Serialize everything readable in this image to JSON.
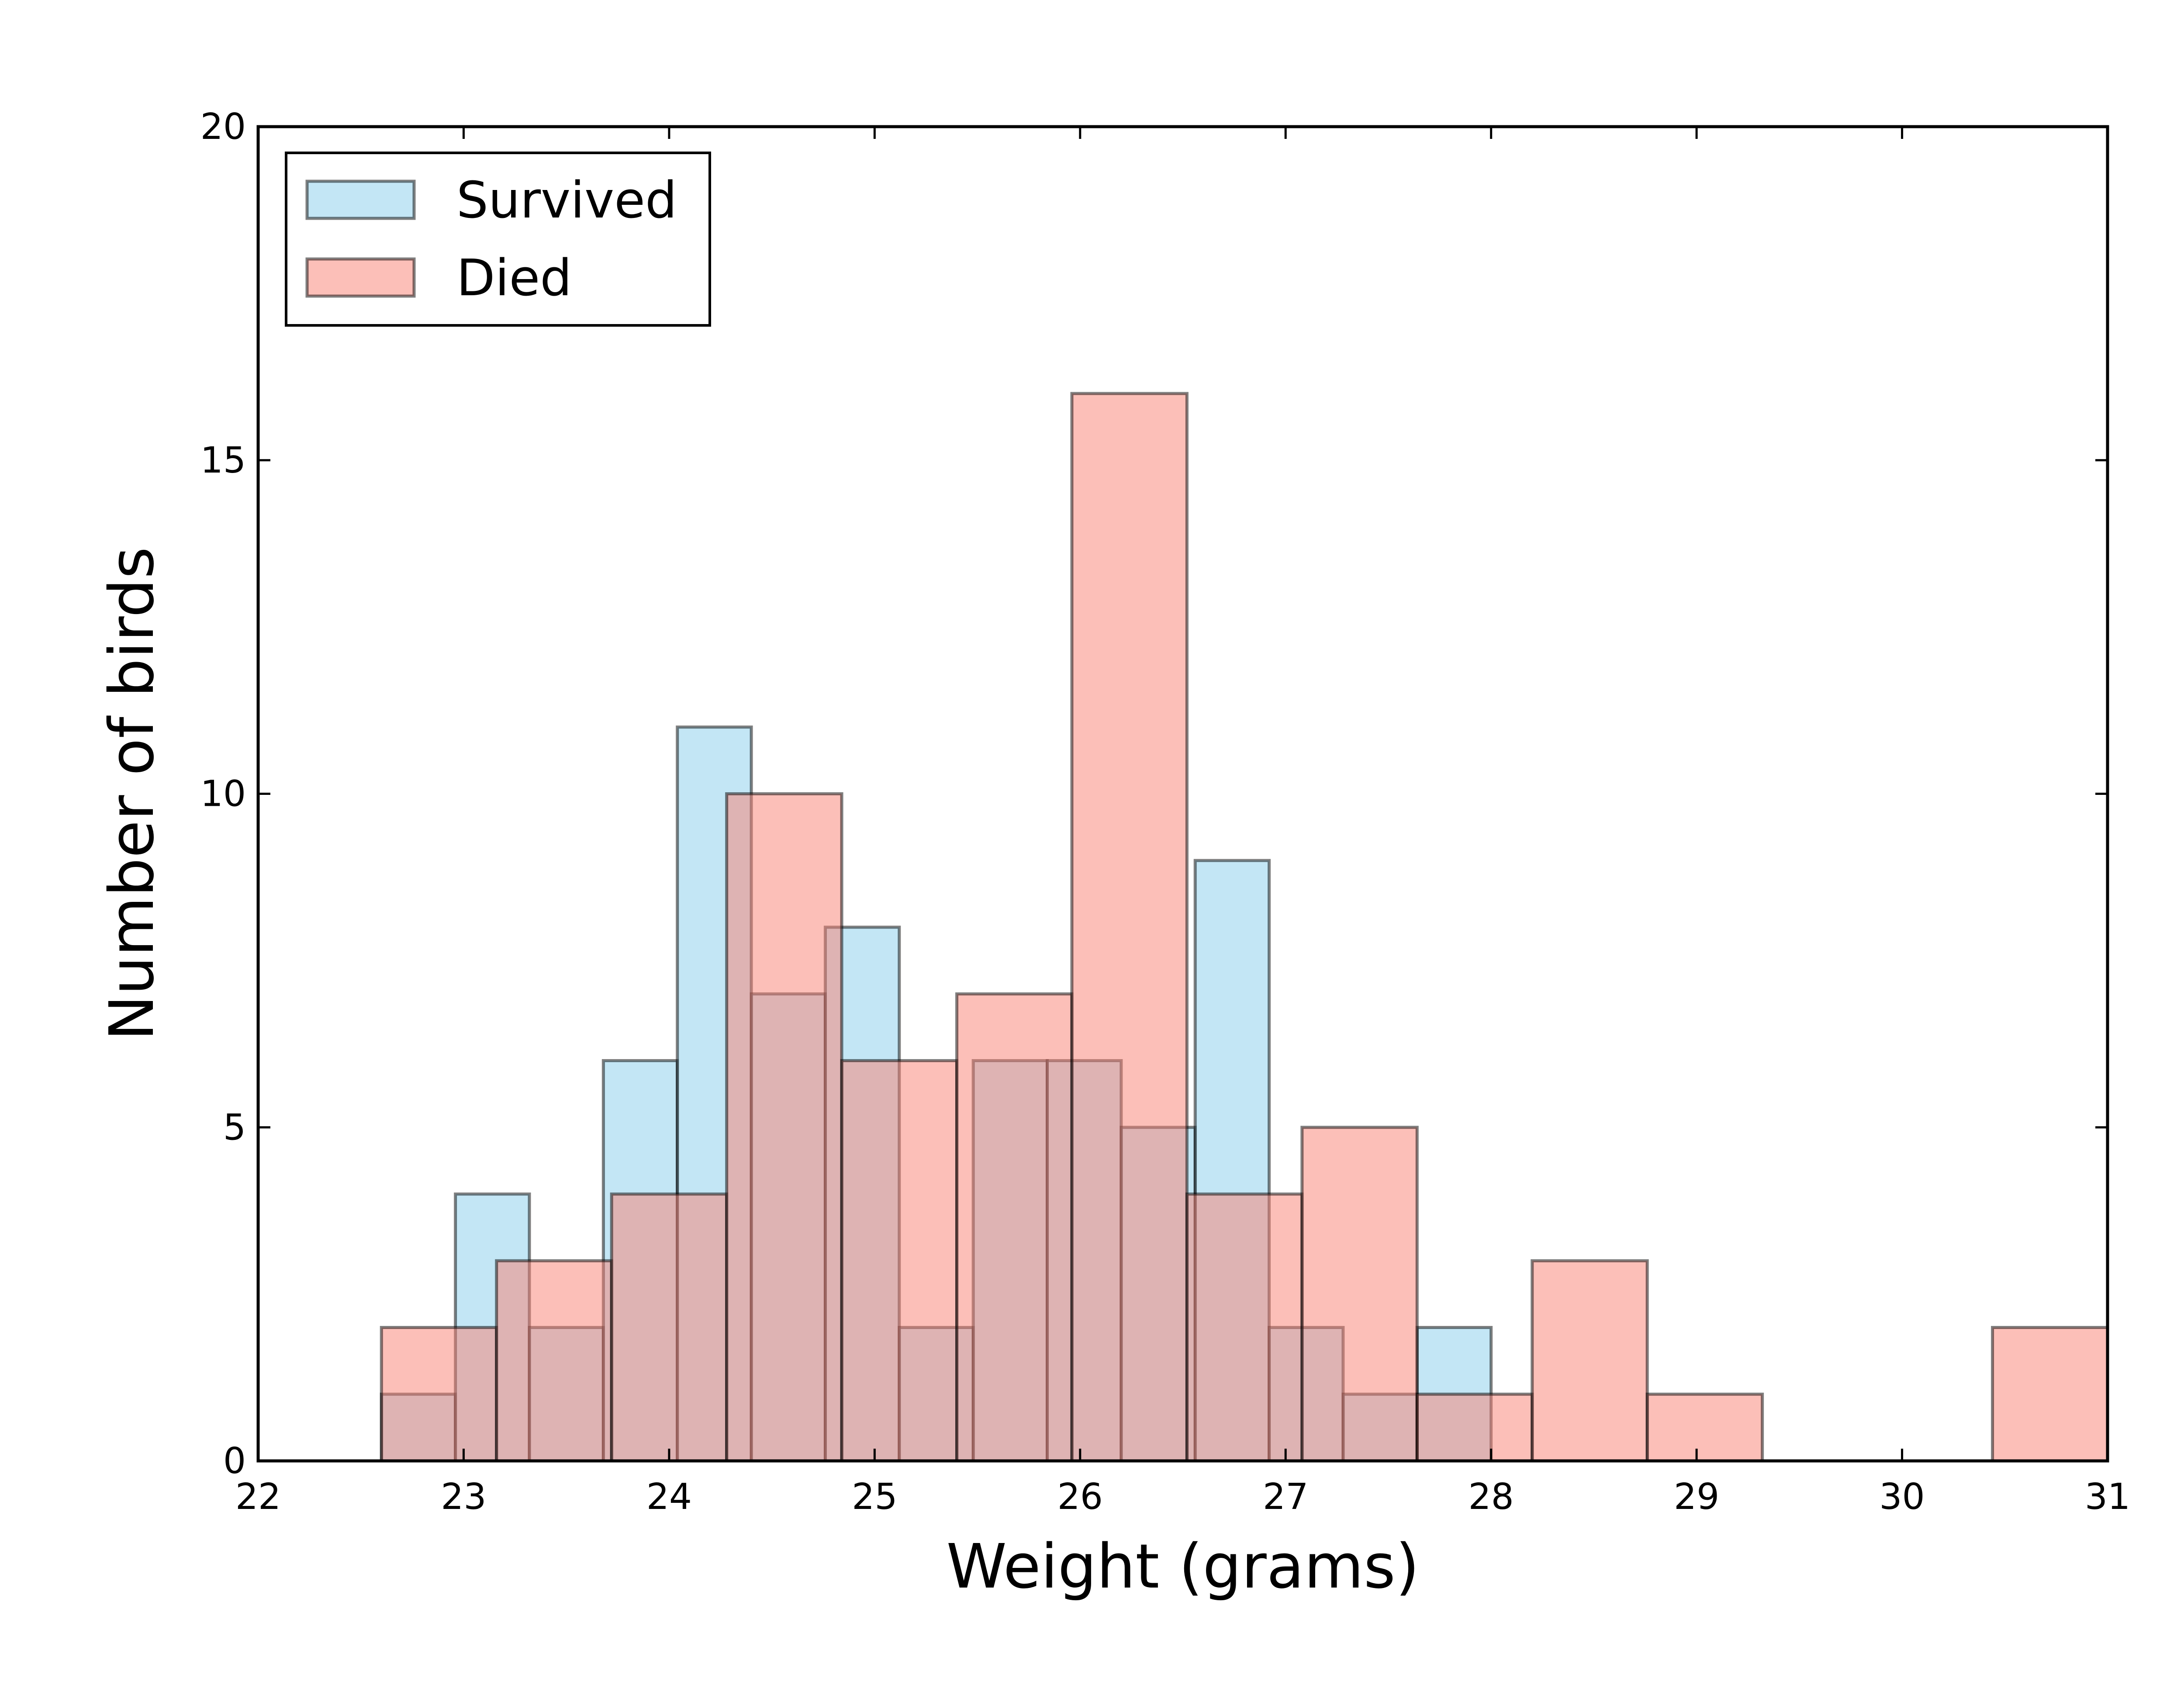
{
  "chart_data": {
    "type": "bar",
    "xlabel": "Weight (grams)",
    "ylabel": "Number of birds",
    "xlim": [
      22,
      31
    ],
    "ylim": [
      0,
      20
    ],
    "x_ticks": [
      "22",
      "23",
      "24",
      "25",
      "26",
      "27",
      "28",
      "29",
      "30",
      "31"
    ],
    "y_ticks": [
      "0",
      "5",
      "10",
      "15",
      "20"
    ],
    "legend_position": "upper-left",
    "grid": false,
    "series": [
      {
        "name": "Survived",
        "color": "#87ceeb",
        "bins": [
          {
            "x0": 22.6,
            "x1": 22.96,
            "count": 1
          },
          {
            "x0": 22.96,
            "x1": 23.32,
            "count": 4
          },
          {
            "x0": 23.32,
            "x1": 23.68,
            "count": 2
          },
          {
            "x0": 23.68,
            "x1": 24.04,
            "count": 6
          },
          {
            "x0": 24.04,
            "x1": 24.4,
            "count": 11
          },
          {
            "x0": 24.4,
            "x1": 24.76,
            "count": 7
          },
          {
            "x0": 24.76,
            "x1": 25.12,
            "count": 8
          },
          {
            "x0": 25.12,
            "x1": 25.48,
            "count": 2
          },
          {
            "x0": 25.48,
            "x1": 25.84,
            "count": 6
          },
          {
            "x0": 25.84,
            "x1": 26.2,
            "count": 6
          },
          {
            "x0": 26.2,
            "x1": 26.56,
            "count": 5
          },
          {
            "x0": 26.56,
            "x1": 26.92,
            "count": 9
          },
          {
            "x0": 26.92,
            "x1": 27.28,
            "count": 2
          },
          {
            "x0": 27.28,
            "x1": 27.64,
            "count": 1
          },
          {
            "x0": 27.64,
            "x1": 28.0,
            "count": 2
          }
        ]
      },
      {
        "name": "Died",
        "color": "#fa8072",
        "bins": [
          {
            "x0": 22.6,
            "x1": 23.16,
            "count": 2
          },
          {
            "x0": 23.16,
            "x1": 23.72,
            "count": 3
          },
          {
            "x0": 23.72,
            "x1": 24.28,
            "count": 4
          },
          {
            "x0": 24.28,
            "x1": 24.84,
            "count": 10
          },
          {
            "x0": 24.84,
            "x1": 25.4,
            "count": 6
          },
          {
            "x0": 25.4,
            "x1": 25.96,
            "count": 7
          },
          {
            "x0": 25.96,
            "x1": 26.52,
            "count": 16
          },
          {
            "x0": 26.52,
            "x1": 27.08,
            "count": 4
          },
          {
            "x0": 27.08,
            "x1": 27.64,
            "count": 5
          },
          {
            "x0": 27.64,
            "x1": 28.2,
            "count": 1
          },
          {
            "x0": 28.2,
            "x1": 28.76,
            "count": 3
          },
          {
            "x0": 28.76,
            "x1": 29.32,
            "count": 1
          },
          {
            "x0": 29.32,
            "x1": 29.88,
            "count": 0
          },
          {
            "x0": 29.88,
            "x1": 30.44,
            "count": 0
          },
          {
            "x0": 30.44,
            "x1": 31.0,
            "count": 2
          }
        ]
      }
    ]
  }
}
